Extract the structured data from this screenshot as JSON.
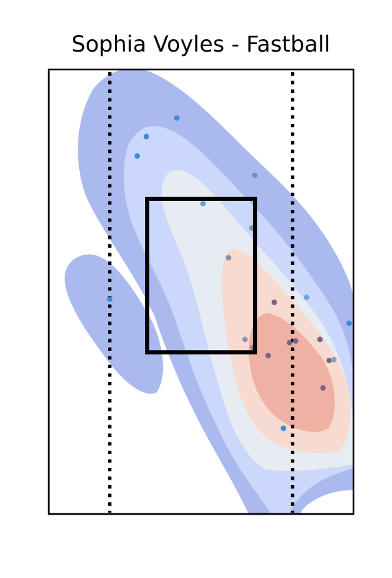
{
  "chart_data": {
    "type": "scatter",
    "title": "Sophia Voyles - Fastball",
    "xlabel": "",
    "ylabel": "",
    "xlim": [
      -2.5,
      2.5
    ],
    "ylim": [
      -0.5,
      5.0
    ],
    "grid": false,
    "legend": "none",
    "density_overlay": {
      "levels": [
        {
          "name": "level-1",
          "color": "#aab9ee"
        },
        {
          "name": "level-2",
          "color": "#cbd8fb"
        },
        {
          "name": "level-3",
          "color": "#e7ebf2"
        },
        {
          "name": "level-4",
          "color": "#f8dbd0"
        },
        {
          "name": "level-5",
          "color": "#eeb1a4"
        }
      ]
    },
    "strike_zone": {
      "x": [
        -0.885,
        0.885
      ],
      "y": [
        1.5,
        3.4
      ]
    },
    "reference_lines": {
      "x": [
        -1.5,
        1.5
      ],
      "style": "dotted",
      "color": "#000000"
    },
    "points": [
      {
        "x": -1.5,
        "y": 2.16,
        "color": "#3f88d6"
      },
      {
        "x": -1.05,
        "y": 3.93,
        "color": "#3f88d6"
      },
      {
        "x": -0.9,
        "y": 4.17,
        "color": "#3f88d6"
      },
      {
        "x": -0.4,
        "y": 4.4,
        "color": "#3f88d6"
      },
      {
        "x": 0.03,
        "y": 3.34,
        "color": "#6a9fd6"
      },
      {
        "x": 0.45,
        "y": 2.67,
        "color": "#7e94b6"
      },
      {
        "x": 0.83,
        "y": 3.04,
        "color": "#7e94b6"
      },
      {
        "x": 0.88,
        "y": 3.69,
        "color": "#5c96d6"
      },
      {
        "x": 0.72,
        "y": 1.66,
        "color": "#8c96aa"
      },
      {
        "x": 0.85,
        "y": 1.56,
        "color": "#8d8096"
      },
      {
        "x": 1.1,
        "y": 1.46,
        "color": "#7a6482"
      },
      {
        "x": 1.2,
        "y": 2.12,
        "color": "#7a6482"
      },
      {
        "x": 1.45,
        "y": 1.62,
        "color": "#7a6482"
      },
      {
        "x": 1.55,
        "y": 1.64,
        "color": "#7a6482"
      },
      {
        "x": 1.95,
        "y": 1.66,
        "color": "#7a6482"
      },
      {
        "x": 2.1,
        "y": 1.4,
        "color": "#7a6482"
      },
      {
        "x": 2.18,
        "y": 1.41,
        "color": "#8ea0b8"
      },
      {
        "x": 2.0,
        "y": 1.06,
        "color": "#7a6482"
      },
      {
        "x": 1.73,
        "y": 2.18,
        "color": "#69a7d8"
      },
      {
        "x": 2.43,
        "y": 1.86,
        "color": "#3f88d6"
      },
      {
        "x": 1.35,
        "y": 0.56,
        "color": "#3f88d6"
      }
    ]
  }
}
